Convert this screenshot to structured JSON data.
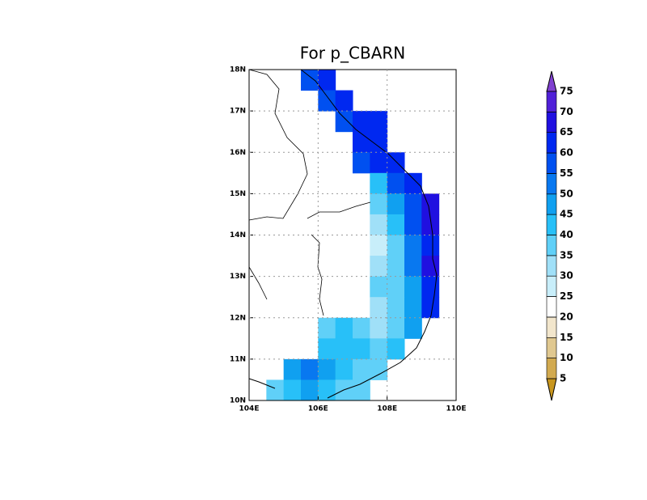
{
  "chart_data": {
    "type": "gridmap",
    "title": "For p_CBARN",
    "xlim": [
      104,
      110
    ],
    "ylim": [
      10,
      18
    ],
    "xticks": [
      {
        "value": 104,
        "label": "104E"
      },
      {
        "value": 106,
        "label": "106E"
      },
      {
        "value": 108,
        "label": "108E"
      },
      {
        "value": 110,
        "label": "110E"
      }
    ],
    "yticks": [
      {
        "value": 10,
        "label": "10N"
      },
      {
        "value": 11,
        "label": "11N"
      },
      {
        "value": 12,
        "label": "12N"
      },
      {
        "value": 13,
        "label": "13N"
      },
      {
        "value": 14,
        "label": "14N"
      },
      {
        "value": 15,
        "label": "15N"
      },
      {
        "value": 16,
        "label": "16N"
      },
      {
        "value": 17,
        "label": "17N"
      },
      {
        "value": 18,
        "label": "18N"
      }
    ],
    "grid": true,
    "resolution": 0.5,
    "rows": [
      {
        "lat": 17.5,
        "lon": 105.5,
        "values": [
          55,
          60
        ]
      },
      {
        "lat": 17.0,
        "lon": 106.0,
        "values": [
          55,
          60
        ]
      },
      {
        "lat": 16.5,
        "lon": 106.5,
        "values": [
          55,
          60,
          60
        ]
      },
      {
        "lat": 16.0,
        "lon": 107.0,
        "values": [
          60,
          60
        ]
      },
      {
        "lat": 15.5,
        "lon": 107.0,
        "values": [
          55,
          60,
          60
        ]
      },
      {
        "lat": 15.0,
        "lon": 107.5,
        "values": [
          40,
          55,
          60
        ]
      },
      {
        "lat": 14.5,
        "lon": 107.5,
        "values": [
          35,
          45,
          55,
          65
        ]
      },
      {
        "lat": 14.0,
        "lon": 107.5,
        "values": [
          30,
          40,
          55,
          65
        ]
      },
      {
        "lat": 13.5,
        "lon": 107.5,
        "values": [
          25,
          35,
          50,
          60
        ]
      },
      {
        "lat": 13.0,
        "lon": 107.5,
        "values": [
          30,
          35,
          50,
          65
        ]
      },
      {
        "lat": 12.5,
        "lon": 107.5,
        "values": [
          35,
          35,
          45,
          60
        ]
      },
      {
        "lat": 12.0,
        "lon": 107.5,
        "values": [
          30,
          35,
          45,
          60
        ]
      },
      {
        "lat": 11.5,
        "lon": 106.0,
        "values": [
          35,
          40,
          35,
          30,
          35,
          45
        ]
      },
      {
        "lat": 11.0,
        "lon": 106.0,
        "values": [
          40,
          40,
          40,
          35,
          40
        ]
      },
      {
        "lat": 10.5,
        "lon": 105.0,
        "values": [
          45,
          50,
          45,
          40,
          35,
          35
        ]
      },
      {
        "lat": 10.0,
        "lon": 104.5,
        "values": [
          35,
          40,
          45,
          40,
          35,
          35
        ]
      }
    ],
    "levels": [
      5,
      10,
      15,
      20,
      25,
      30,
      35,
      40,
      45,
      50,
      55,
      60,
      65,
      70,
      75
    ],
    "colors": [
      "#c8961e",
      "#d2aa50",
      "#e0c890",
      "#f2e6cc",
      "#ffffff",
      "#c8eefa",
      "#a0e0f8",
      "#60d0f8",
      "#28c0f8",
      "#10a0f0",
      "#0878f0",
      "#0050f0",
      "#0028f0",
      "#2010e0",
      "#5020d8",
      "#8040d0"
    ]
  }
}
